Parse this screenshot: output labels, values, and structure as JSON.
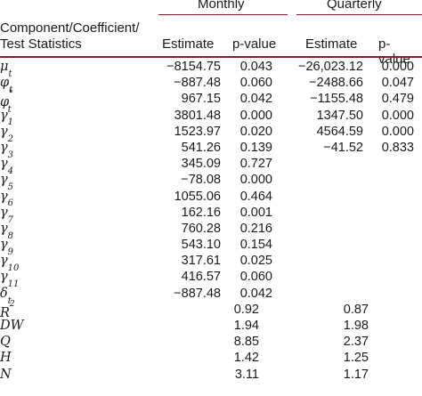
{
  "header": {
    "groups": {
      "monthly": "Monthly",
      "quarterly": "Quarterly"
    },
    "component_line1": "Component/Coefficient/",
    "component_line2": "Test Statistics",
    "columns": {
      "m_estimate": "Estimate",
      "m_pvalue": "p-value",
      "q_estimate": "Estimate",
      "q_pvalue": "p-value"
    }
  },
  "rows": [
    {
      "label": "μ",
      "sub": "t",
      "m_est": "−8154.75",
      "m_p": "0.043",
      "q_est": "−26,023.12",
      "q_p": "0.000"
    },
    {
      "label": "φ",
      "sub": "t",
      "m_est": "−887.48",
      "m_p": "0.060",
      "q_est": "−2488.66",
      "q_p": "0.047"
    },
    {
      "label": "φ",
      "sub": "t",
      "sup": "*",
      "m_est": "967.15",
      "m_p": "0.042",
      "q_est": "−1155.48",
      "q_p": "0.479"
    },
    {
      "label": "γ",
      "sub": "1",
      "m_est": "3801.48",
      "m_p": "0.000",
      "q_est": "1347.50",
      "q_p": "0.000"
    },
    {
      "label": "γ",
      "sub": "2",
      "m_est": "1523.97",
      "m_p": "0.020",
      "q_est": "4564.59",
      "q_p": "0.000"
    },
    {
      "label": "γ",
      "sub": "3",
      "m_est": "541.26",
      "m_p": "0.139",
      "q_est": "−41.52",
      "q_p": "0.833"
    },
    {
      "label": "γ",
      "sub": "4",
      "m_est": "345.09",
      "m_p": "0.727",
      "q_est": "",
      "q_p": ""
    },
    {
      "label": "γ",
      "sub": "5",
      "m_est": "−78.08",
      "m_p": "0.000",
      "q_est": "",
      "q_p": ""
    },
    {
      "label": "γ",
      "sub": "6",
      "m_est": "1055.06",
      "m_p": "0.464",
      "q_est": "",
      "q_p": ""
    },
    {
      "label": "γ",
      "sub": "7",
      "m_est": "162.16",
      "m_p": "0.001",
      "q_est": "",
      "q_p": ""
    },
    {
      "label": "γ",
      "sub": "8",
      "m_est": "760.28",
      "m_p": "0.216",
      "q_est": "",
      "q_p": ""
    },
    {
      "label": "γ",
      "sub": "9",
      "m_est": "543.10",
      "m_p": "0.154",
      "q_est": "",
      "q_p": ""
    },
    {
      "label": "γ",
      "sub": "10",
      "m_est": "317.61",
      "m_p": "0.025",
      "q_est": "",
      "q_p": ""
    },
    {
      "label": "γ",
      "sub": "11",
      "m_est": "416.57",
      "m_p": "0.060",
      "q_est": "",
      "q_p": ""
    },
    {
      "label": "δ",
      "sub": "t",
      "m_est": "−887.48",
      "m_p": "0.042",
      "q_est": "",
      "q_p": ""
    }
  ],
  "stats": [
    {
      "label": "R",
      "sup": "2",
      "monthly": "0.92",
      "quarterly": "0.87"
    },
    {
      "label": "DW",
      "monthly": "1.94",
      "quarterly": "1.98"
    },
    {
      "label": "Q",
      "monthly": "8.85",
      "quarterly": "2.37"
    },
    {
      "label": "H",
      "monthly": "1.42",
      "quarterly": "1.25"
    },
    {
      "label": "N",
      "monthly": "3.11",
      "quarterly": "1.17"
    }
  ],
  "colors": {
    "rule": "#8a1c24",
    "text": "#1a1a1a"
  }
}
